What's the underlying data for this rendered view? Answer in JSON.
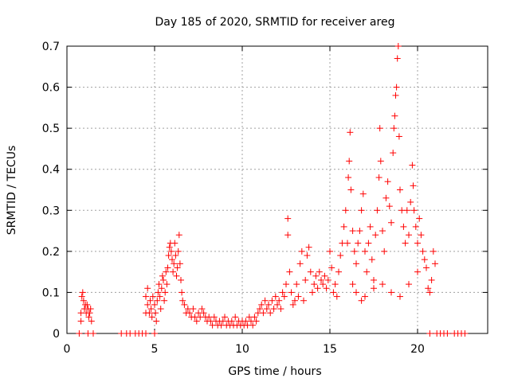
{
  "chart_data": {
    "type": "scatter",
    "title": "Day 185 of 2020, SRMTID for receiver areg",
    "xlabel": "GPS time / hours",
    "ylabel": "SRMTID / TECUs",
    "xlim": [
      0,
      24
    ],
    "ylim": [
      0,
      0.7
    ],
    "xticks": [
      0,
      5,
      10,
      15,
      20
    ],
    "xtick_labels": [
      "0",
      "5",
      "10",
      "15",
      "20"
    ],
    "yticks": [
      0,
      0.1,
      0.2,
      0.3,
      0.4,
      0.5,
      0.6,
      0.7
    ],
    "ytick_labels": [
      "0",
      "0.1",
      "0.2",
      "0.3",
      "0.4",
      "0.5",
      "0.6",
      "0.7"
    ],
    "grid": true,
    "marker": "+",
    "marker_color": "#ff0000",
    "series": [
      {
        "name": "SRMTID",
        "points": [
          [
            0.7,
            0.0
          ],
          [
            0.8,
            0.03
          ],
          [
            0.8,
            0.05
          ],
          [
            0.85,
            0.09
          ],
          [
            0.9,
            0.1
          ],
          [
            0.95,
            0.08
          ],
          [
            1.0,
            0.06
          ],
          [
            1.05,
            0.07
          ],
          [
            1.1,
            0.05
          ],
          [
            1.15,
            0.07
          ],
          [
            1.2,
            0.06
          ],
          [
            1.25,
            0.04
          ],
          [
            1.3,
            0.05
          ],
          [
            1.35,
            0.06
          ],
          [
            1.4,
            0.03
          ],
          [
            1.2,
            0.0
          ],
          [
            1.5,
            0.0
          ],
          [
            3.1,
            0.0
          ],
          [
            3.4,
            0.0
          ],
          [
            3.6,
            0.0
          ],
          [
            3.9,
            0.0
          ],
          [
            4.1,
            0.0
          ],
          [
            4.3,
            0.0
          ],
          [
            4.5,
            0.0
          ],
          [
            5.0,
            0.0
          ],
          [
            4.5,
            0.05
          ],
          [
            4.5,
            0.09
          ],
          [
            4.6,
            0.11
          ],
          [
            4.6,
            0.07
          ],
          [
            4.7,
            0.05
          ],
          [
            4.75,
            0.08
          ],
          [
            4.8,
            0.06
          ],
          [
            4.85,
            0.04
          ],
          [
            4.9,
            0.09
          ],
          [
            5.0,
            0.07
          ],
          [
            5.05,
            0.05
          ],
          [
            5.1,
            0.03
          ],
          [
            5.15,
            0.08
          ],
          [
            5.2,
            0.1
          ],
          [
            5.25,
            0.12
          ],
          [
            5.3,
            0.09
          ],
          [
            5.35,
            0.06
          ],
          [
            5.4,
            0.11
          ],
          [
            5.45,
            0.14
          ],
          [
            5.5,
            0.13
          ],
          [
            5.55,
            0.08
          ],
          [
            5.6,
            0.1
          ],
          [
            5.65,
            0.15
          ],
          [
            5.7,
            0.12
          ],
          [
            5.75,
            0.16
          ],
          [
            5.8,
            0.19
          ],
          [
            5.85,
            0.21
          ],
          [
            5.9,
            0.22
          ],
          [
            5.95,
            0.2
          ],
          [
            6.0,
            0.18
          ],
          [
            6.05,
            0.15
          ],
          [
            6.1,
            0.17
          ],
          [
            6.15,
            0.22
          ],
          [
            6.2,
            0.19
          ],
          [
            6.25,
            0.14
          ],
          [
            6.3,
            0.16
          ],
          [
            6.35,
            0.2
          ],
          [
            6.4,
            0.24
          ],
          [
            6.45,
            0.17
          ],
          [
            6.5,
            0.13
          ],
          [
            6.55,
            0.1
          ],
          [
            6.6,
            0.08
          ],
          [
            6.7,
            0.07
          ],
          [
            6.8,
            0.05
          ],
          [
            6.9,
            0.06
          ],
          [
            7.0,
            0.05
          ],
          [
            7.1,
            0.04
          ],
          [
            7.2,
            0.06
          ],
          [
            7.3,
            0.04
          ],
          [
            7.4,
            0.03
          ],
          [
            7.5,
            0.05
          ],
          [
            7.6,
            0.04
          ],
          [
            7.7,
            0.06
          ],
          [
            7.8,
            0.05
          ],
          [
            7.9,
            0.04
          ],
          [
            8.0,
            0.03
          ],
          [
            8.1,
            0.04
          ],
          [
            8.2,
            0.03
          ],
          [
            8.3,
            0.02
          ],
          [
            8.4,
            0.04
          ],
          [
            8.5,
            0.03
          ],
          [
            8.6,
            0.02
          ],
          [
            8.7,
            0.03
          ],
          [
            8.8,
            0.02
          ],
          [
            8.9,
            0.03
          ],
          [
            9.0,
            0.04
          ],
          [
            9.1,
            0.02
          ],
          [
            9.2,
            0.03
          ],
          [
            9.3,
            0.02
          ],
          [
            9.4,
            0.03
          ],
          [
            9.5,
            0.02
          ],
          [
            9.6,
            0.04
          ],
          [
            9.7,
            0.02
          ],
          [
            9.8,
            0.03
          ],
          [
            9.9,
            0.02
          ],
          [
            10.0,
            0.03
          ],
          [
            10.1,
            0.02
          ],
          [
            10.2,
            0.03
          ],
          [
            10.3,
            0.02
          ],
          [
            10.4,
            0.04
          ],
          [
            10.5,
            0.03
          ],
          [
            10.6,
            0.02
          ],
          [
            10.7,
            0.04
          ],
          [
            10.8,
            0.03
          ],
          [
            10.9,
            0.05
          ],
          [
            11.0,
            0.06
          ],
          [
            11.1,
            0.07
          ],
          [
            11.2,
            0.05
          ],
          [
            11.3,
            0.08
          ],
          [
            11.4,
            0.06
          ],
          [
            11.5,
            0.07
          ],
          [
            11.6,
            0.05
          ],
          [
            11.7,
            0.08
          ],
          [
            11.8,
            0.06
          ],
          [
            11.9,
            0.09
          ],
          [
            12.0,
            0.07
          ],
          [
            12.1,
            0.08
          ],
          [
            12.2,
            0.06
          ],
          [
            12.3,
            0.1
          ],
          [
            12.4,
            0.09
          ],
          [
            12.5,
            0.12
          ],
          [
            12.6,
            0.24
          ],
          [
            12.6,
            0.28
          ],
          [
            12.7,
            0.15
          ],
          [
            12.8,
            0.1
          ],
          [
            12.9,
            0.07
          ],
          [
            13.0,
            0.08
          ],
          [
            13.1,
            0.12
          ],
          [
            13.2,
            0.09
          ],
          [
            13.3,
            0.17
          ],
          [
            13.4,
            0.2
          ],
          [
            13.5,
            0.08
          ],
          [
            13.6,
            0.13
          ],
          [
            13.7,
            0.19
          ],
          [
            13.8,
            0.21
          ],
          [
            13.9,
            0.15
          ],
          [
            14.0,
            0.1
          ],
          [
            14.1,
            0.12
          ],
          [
            14.2,
            0.14
          ],
          [
            14.3,
            0.11
          ],
          [
            14.4,
            0.15
          ],
          [
            14.5,
            0.13
          ],
          [
            14.6,
            0.12
          ],
          [
            14.7,
            0.14
          ],
          [
            14.8,
            0.11
          ],
          [
            14.9,
            0.13
          ],
          [
            15.0,
            0.2
          ],
          [
            15.1,
            0.16
          ],
          [
            15.2,
            0.1
          ],
          [
            15.3,
            0.12
          ],
          [
            15.4,
            0.09
          ],
          [
            15.5,
            0.15
          ],
          [
            15.6,
            0.19
          ],
          [
            15.7,
            0.22
          ],
          [
            15.8,
            0.26
          ],
          [
            15.9,
            0.3
          ],
          [
            16.0,
            0.22
          ],
          [
            16.05,
            0.38
          ],
          [
            16.1,
            0.42
          ],
          [
            16.15,
            0.49
          ],
          [
            16.2,
            0.35
          ],
          [
            16.3,
            0.25
          ],
          [
            16.4,
            0.2
          ],
          [
            16.5,
            0.17
          ],
          [
            16.6,
            0.22
          ],
          [
            16.7,
            0.25
          ],
          [
            16.8,
            0.3
          ],
          [
            16.9,
            0.34
          ],
          [
            17.0,
            0.2
          ],
          [
            17.1,
            0.15
          ],
          [
            17.2,
            0.22
          ],
          [
            17.3,
            0.26
          ],
          [
            17.4,
            0.18
          ],
          [
            17.5,
            0.13
          ],
          [
            17.6,
            0.24
          ],
          [
            17.7,
            0.3
          ],
          [
            17.8,
            0.38
          ],
          [
            17.85,
            0.5
          ],
          [
            17.9,
            0.42
          ],
          [
            18.0,
            0.25
          ],
          [
            18.1,
            0.2
          ],
          [
            18.2,
            0.33
          ],
          [
            18.3,
            0.37
          ],
          [
            18.4,
            0.31
          ],
          [
            18.5,
            0.27
          ],
          [
            18.6,
            0.44
          ],
          [
            18.65,
            0.5
          ],
          [
            18.7,
            0.53
          ],
          [
            18.75,
            0.58
          ],
          [
            18.8,
            0.6
          ],
          [
            18.85,
            0.67
          ],
          [
            18.9,
            0.7
          ],
          [
            18.95,
            0.48
          ],
          [
            19.0,
            0.35
          ],
          [
            19.1,
            0.3
          ],
          [
            19.2,
            0.26
          ],
          [
            19.3,
            0.22
          ],
          [
            19.4,
            0.3
          ],
          [
            19.5,
            0.24
          ],
          [
            19.6,
            0.32
          ],
          [
            19.7,
            0.41
          ],
          [
            19.75,
            0.36
          ],
          [
            19.8,
            0.3
          ],
          [
            19.9,
            0.26
          ],
          [
            20.0,
            0.22
          ],
          [
            20.1,
            0.28
          ],
          [
            20.2,
            0.24
          ],
          [
            20.3,
            0.2
          ],
          [
            20.4,
            0.18
          ],
          [
            20.5,
            0.16
          ],
          [
            20.6,
            0.11
          ],
          [
            20.7,
            0.1
          ],
          [
            20.8,
            0.13
          ],
          [
            20.9,
            0.2
          ],
          [
            21.0,
            0.17
          ],
          [
            16.3,
            0.12
          ],
          [
            16.5,
            0.1
          ],
          [
            16.8,
            0.08
          ],
          [
            17.0,
            0.09
          ],
          [
            17.5,
            0.11
          ],
          [
            18.0,
            0.12
          ],
          [
            18.5,
            0.1
          ],
          [
            19.0,
            0.09
          ],
          [
            19.5,
            0.12
          ],
          [
            20.0,
            0.15
          ],
          [
            20.7,
            0.0
          ],
          [
            21.1,
            0.0
          ],
          [
            21.3,
            0.0
          ],
          [
            21.5,
            0.0
          ],
          [
            21.7,
            0.0
          ],
          [
            22.1,
            0.0
          ],
          [
            22.3,
            0.0
          ],
          [
            22.5,
            0.0
          ],
          [
            22.7,
            0.0
          ]
        ]
      }
    ]
  }
}
